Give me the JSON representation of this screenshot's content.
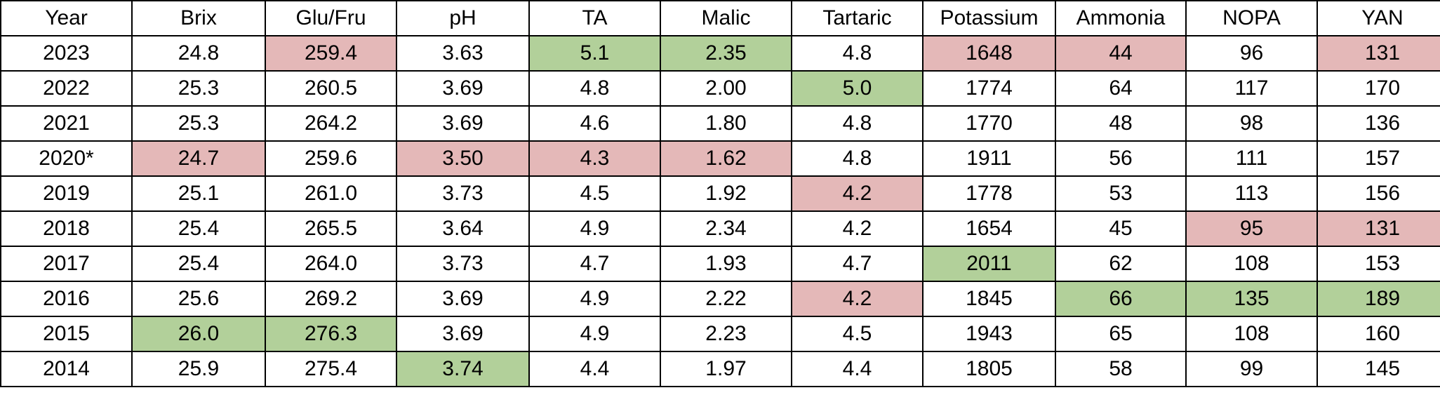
{
  "colors": {
    "high": "#b2d09a",
    "low": "#e4b8b8"
  },
  "chart_data": {
    "type": "table",
    "columns": [
      "Year",
      "Brix",
      "Glu/Fru",
      "pH",
      "TA",
      "Malic",
      "Tartaric",
      "Potassium",
      "Ammonia",
      "NOPA",
      "YAN"
    ],
    "rows": [
      [
        "2023",
        "24.8",
        "259.4",
        "3.63",
        "5.1",
        "2.35",
        "4.8",
        "1648",
        "44",
        "96",
        "131"
      ],
      [
        "2022",
        "25.3",
        "260.5",
        "3.69",
        "4.8",
        "2.00",
        "5.0",
        "1774",
        "64",
        "117",
        "170"
      ],
      [
        "2021",
        "25.3",
        "264.2",
        "3.69",
        "4.6",
        "1.80",
        "4.8",
        "1770",
        "48",
        "98",
        "136"
      ],
      [
        "2020*",
        "24.7",
        "259.6",
        "3.50",
        "4.3",
        "1.62",
        "4.8",
        "1911",
        "56",
        "111",
        "157"
      ],
      [
        "2019",
        "25.1",
        "261.0",
        "3.73",
        "4.5",
        "1.92",
        "4.2",
        "1778",
        "53",
        "113",
        "156"
      ],
      [
        "2018",
        "25.4",
        "265.5",
        "3.64",
        "4.9",
        "2.34",
        "4.2",
        "1654",
        "45",
        "95",
        "131"
      ],
      [
        "2017",
        "25.4",
        "264.0",
        "3.73",
        "4.7",
        "1.93",
        "4.7",
        "2011",
        "62",
        "108",
        "153"
      ],
      [
        "2016",
        "25.6",
        "269.2",
        "3.69",
        "4.9",
        "2.22",
        "4.2",
        "1845",
        "66",
        "135",
        "189"
      ],
      [
        "2015",
        "26.0",
        "276.3",
        "3.69",
        "4.9",
        "2.23",
        "4.5",
        "1943",
        "65",
        "108",
        "160"
      ],
      [
        "2014",
        "25.9",
        "275.4",
        "3.74",
        "4.4",
        "1.97",
        "4.4",
        "1805",
        "58",
        "99",
        "145"
      ]
    ],
    "highlights": [
      [
        "",
        "",
        "low",
        "",
        "high",
        "high",
        "",
        "low",
        "low",
        "",
        "low"
      ],
      [
        "",
        "",
        "",
        "",
        "",
        "",
        "high",
        "",
        "",
        "",
        ""
      ],
      [
        "",
        "",
        "",
        "",
        "",
        "",
        "",
        "",
        "",
        "",
        ""
      ],
      [
        "",
        "low",
        "",
        "low",
        "low",
        "low",
        "",
        "",
        "",
        "",
        ""
      ],
      [
        "",
        "",
        "",
        "",
        "",
        "",
        "low",
        "",
        "",
        "",
        ""
      ],
      [
        "",
        "",
        "",
        "",
        "",
        "",
        "",
        "",
        "",
        "low",
        "low"
      ],
      [
        "",
        "",
        "",
        "",
        "",
        "",
        "",
        "high",
        "",
        "",
        ""
      ],
      [
        "",
        "",
        "",
        "",
        "",
        "",
        "low",
        "",
        "high",
        "high",
        "high"
      ],
      [
        "",
        "high",
        "high",
        "",
        "",
        "",
        "",
        "",
        "",
        "",
        ""
      ],
      [
        "",
        "",
        "",
        "high",
        "",
        "",
        "",
        "",
        "",
        "",
        ""
      ]
    ]
  }
}
